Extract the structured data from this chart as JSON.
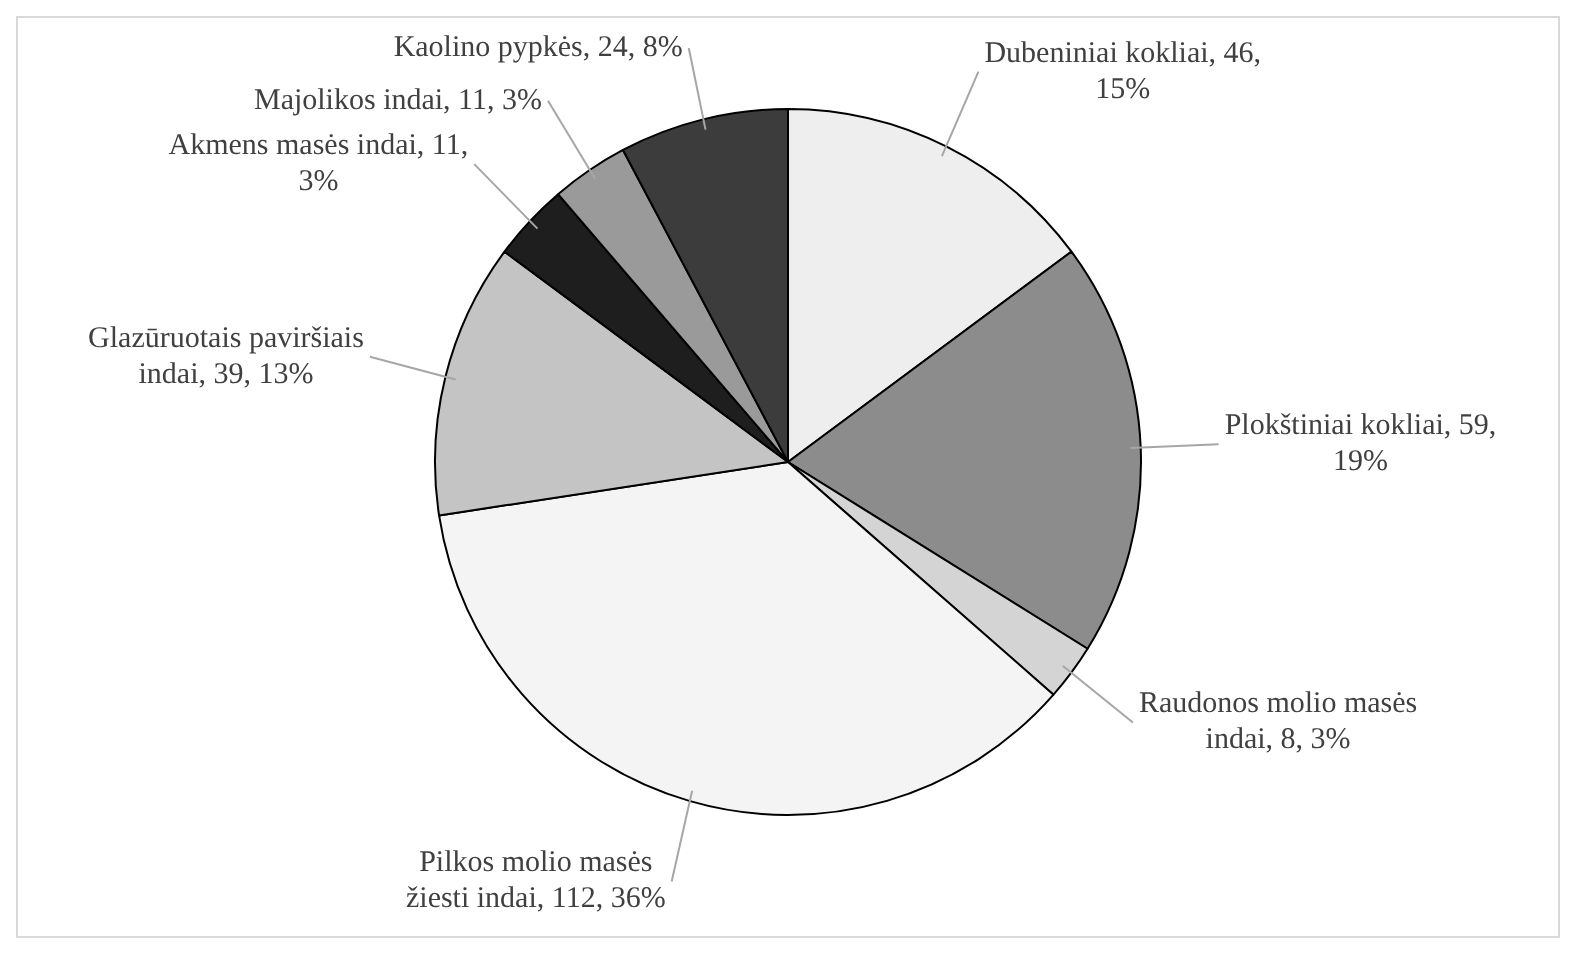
{
  "chart_data": {
    "type": "pie",
    "categories": [
      "Dubeniniai kokliai",
      "Plokštiniai kokliai",
      "Raudonos molio masės indai",
      "Pilkos molio masės žiesti indai",
      "Glazūruotais paviršiais indai",
      "Akmens masės indai",
      "Majolikos indai",
      "Kaolino pypkės"
    ],
    "values": [
      46,
      59,
      8,
      112,
      39,
      11,
      11,
      24
    ],
    "value_labels": [
      "46, 15%",
      "59, 19%",
      "8, 3%",
      "112, 36%",
      "39, 13%",
      "11, 3%",
      "11, 3%",
      "24, 8%"
    ],
    "colors": [
      "#eeeeee",
      "#8c8c8c",
      "#d4d4d4",
      "#f4f4f4",
      "#c4c4c4",
      "#1e1e1e",
      "#9a9a9a",
      "#3c3c3c"
    ],
    "legend": false
  }
}
